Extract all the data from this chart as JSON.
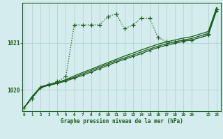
{
  "background_color": "#d4ecee",
  "grid_color": "#aecfcf",
  "line_color": "#1a5c1a",
  "title": "Graphe pression niveau de la mer (hPa)",
  "xlabel_ticks": [
    0,
    1,
    2,
    3,
    4,
    5,
    6,
    7,
    8,
    9,
    10,
    11,
    12,
    13,
    14,
    15,
    16,
    17,
    18,
    19,
    20,
    22,
    23
  ],
  "xlim": [
    -0.2,
    23.5
  ],
  "ylim": [
    1019.55,
    1021.85
  ],
  "yticks": [
    1020,
    1021
  ],
  "series": {
    "spiky": {
      "x": [
        0,
        1,
        2,
        3,
        4,
        5,
        6,
        7,
        8,
        9,
        10,
        11,
        12,
        13,
        14,
        15,
        16,
        17,
        18,
        19,
        20,
        22,
        23
      ],
      "y": [
        1019.62,
        1019.82,
        1020.05,
        1020.12,
        1020.18,
        1020.28,
        1021.38,
        1021.38,
        1021.38,
        1021.38,
        1021.55,
        1021.62,
        1021.3,
        1021.38,
        1021.52,
        1021.52,
        1021.12,
        1021.02,
        1021.02,
        1021.05,
        1021.05,
        1021.18,
        1021.72
      ]
    },
    "smooth1": {
      "x": [
        0,
        1,
        2,
        3,
        4,
        5,
        6,
        7,
        8,
        9,
        10,
        11,
        12,
        13,
        14,
        15,
        16,
        17,
        18,
        19,
        20,
        22,
        23
      ],
      "y": [
        1019.62,
        1019.85,
        1020.05,
        1020.1,
        1020.14,
        1020.19,
        1020.25,
        1020.31,
        1020.38,
        1020.45,
        1020.52,
        1020.59,
        1020.65,
        1020.71,
        1020.77,
        1020.84,
        1020.9,
        1020.95,
        1020.99,
        1021.03,
        1021.06,
        1021.16,
        1021.68
      ]
    },
    "smooth2": {
      "x": [
        0,
        1,
        2,
        3,
        4,
        5,
        6,
        7,
        8,
        9,
        10,
        11,
        12,
        13,
        14,
        15,
        16,
        17,
        18,
        19,
        20,
        22,
        23
      ],
      "y": [
        1019.62,
        1019.86,
        1020.06,
        1020.11,
        1020.15,
        1020.21,
        1020.27,
        1020.34,
        1020.41,
        1020.48,
        1020.55,
        1020.62,
        1020.68,
        1020.74,
        1020.81,
        1020.87,
        1020.93,
        1020.98,
        1021.02,
        1021.06,
        1021.09,
        1021.2,
        1021.72
      ]
    },
    "smooth3": {
      "x": [
        0,
        1,
        2,
        3,
        4,
        5,
        6,
        7,
        8,
        9,
        10,
        11,
        12,
        13,
        14,
        15,
        16,
        17,
        18,
        19,
        20,
        22,
        23
      ],
      "y": [
        1019.62,
        1019.87,
        1020.07,
        1020.12,
        1020.16,
        1020.22,
        1020.3,
        1020.37,
        1020.44,
        1020.51,
        1020.58,
        1020.65,
        1020.72,
        1020.78,
        1020.85,
        1020.91,
        1020.97,
        1021.02,
        1021.06,
        1021.1,
        1021.13,
        1021.24,
        1021.75
      ]
    }
  }
}
